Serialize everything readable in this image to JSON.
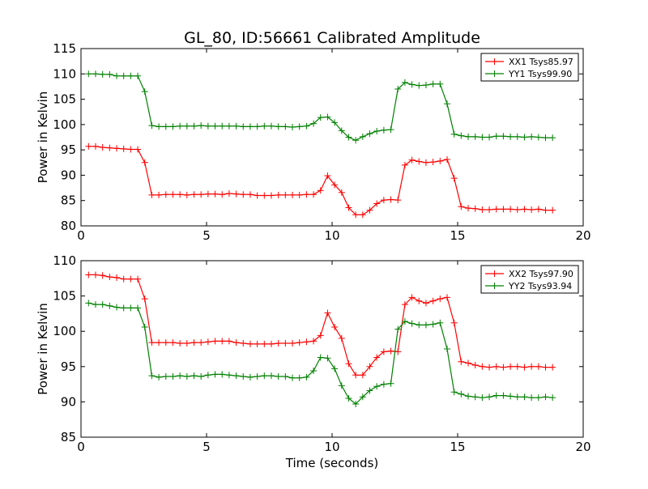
{
  "chart_data": [
    {
      "type": "line",
      "title": "GL_80, ID:56661 Calibrated Amplitude",
      "xlabel": "",
      "ylabel": "Power in Kelvin",
      "xlim": [
        0,
        20
      ],
      "ylim": [
        80,
        115
      ],
      "xticks": [
        "0",
        "5",
        "10",
        "15",
        "20"
      ],
      "yticks": [
        "80",
        "85",
        "90",
        "95",
        "100",
        "105",
        "110",
        "115"
      ],
      "legend_position": "top-right",
      "x": [
        0.3,
        0.58,
        0.86,
        1.14,
        1.42,
        1.7,
        1.98,
        2.26,
        2.54,
        2.82,
        3.1,
        3.38,
        3.66,
        3.94,
        4.22,
        4.5,
        4.78,
        5.06,
        5.34,
        5.62,
        5.9,
        6.18,
        6.46,
        6.74,
        7.02,
        7.3,
        7.58,
        7.86,
        8.14,
        8.42,
        8.7,
        8.98,
        9.26,
        9.54,
        9.82,
        10.1,
        10.38,
        10.66,
        10.94,
        11.22,
        11.5,
        11.78,
        12.06,
        12.34,
        12.62,
        12.9,
        13.18,
        13.46,
        13.74,
        14.02,
        14.3,
        14.58,
        14.86,
        15.14,
        15.42,
        15.7,
        15.98,
        16.26,
        16.54,
        16.82,
        17.1,
        17.38,
        17.66,
        17.94,
        18.22,
        18.5,
        18.78
      ],
      "series": [
        {
          "name": "XX1 Tsys85.97",
          "color": "#ff0000",
          "values": [
            95.7,
            95.7,
            95.5,
            95.4,
            95.3,
            95.2,
            95.1,
            95.1,
            92.5,
            86.1,
            86.1,
            86.2,
            86.2,
            86.2,
            86.1,
            86.2,
            86.2,
            86.3,
            86.3,
            86.2,
            86.4,
            86.3,
            86.2,
            86.2,
            86.0,
            86.0,
            86.0,
            86.1,
            86.1,
            86.1,
            86.1,
            86.2,
            86.2,
            87.0,
            89.9,
            88.1,
            86.6,
            83.6,
            82.2,
            82.2,
            83.1,
            84.4,
            85.1,
            85.2,
            85.1,
            92.0,
            93.0,
            92.7,
            92.5,
            92.6,
            92.8,
            93.1,
            89.4,
            83.8,
            83.5,
            83.4,
            83.2,
            83.2,
            83.3,
            83.3,
            83.3,
            83.2,
            83.3,
            83.2,
            83.3,
            83.1,
            83.1
          ]
        },
        {
          "name": "YY1 Tsys99.90",
          "color": "#008000",
          "values": [
            110.0,
            110.0,
            109.9,
            109.9,
            109.6,
            109.6,
            109.6,
            109.6,
            106.5,
            99.8,
            99.6,
            99.6,
            99.6,
            99.7,
            99.7,
            99.7,
            99.8,
            99.7,
            99.7,
            99.7,
            99.7,
            99.7,
            99.6,
            99.6,
            99.6,
            99.7,
            99.7,
            99.6,
            99.6,
            99.5,
            99.6,
            99.7,
            100.2,
            101.4,
            101.5,
            100.4,
            98.8,
            97.5,
            96.9,
            97.6,
            98.2,
            98.7,
            98.9,
            99.0,
            107.0,
            108.3,
            107.9,
            107.7,
            107.8,
            108.0,
            108.0,
            104.1,
            98.1,
            97.8,
            97.6,
            97.6,
            97.5,
            97.5,
            97.7,
            97.7,
            97.6,
            97.6,
            97.5,
            97.6,
            97.5,
            97.4,
            97.4
          ]
        }
      ]
    },
    {
      "type": "line",
      "title": "",
      "xlabel": "Time (seconds)",
      "ylabel": "Power in Kelvin",
      "xlim": [
        0,
        20
      ],
      "ylim": [
        85,
        110
      ],
      "xticks": [
        "0",
        "5",
        "10",
        "15",
        "20"
      ],
      "yticks": [
        "85",
        "90",
        "95",
        "100",
        "105",
        "110"
      ],
      "legend_position": "top-right",
      "x": [
        0.3,
        0.58,
        0.86,
        1.14,
        1.42,
        1.7,
        1.98,
        2.26,
        2.54,
        2.82,
        3.1,
        3.38,
        3.66,
        3.94,
        4.22,
        4.5,
        4.78,
        5.06,
        5.34,
        5.62,
        5.9,
        6.18,
        6.46,
        6.74,
        7.02,
        7.3,
        7.58,
        7.86,
        8.14,
        8.42,
        8.7,
        8.98,
        9.26,
        9.54,
        9.82,
        10.1,
        10.38,
        10.66,
        10.94,
        11.22,
        11.5,
        11.78,
        12.06,
        12.34,
        12.62,
        12.9,
        13.18,
        13.46,
        13.74,
        14.02,
        14.3,
        14.58,
        14.86,
        15.14,
        15.42,
        15.7,
        15.98,
        16.26,
        16.54,
        16.82,
        17.1,
        17.38,
        17.66,
        17.94,
        18.22,
        18.5,
        18.78
      ],
      "series": [
        {
          "name": "XX2 Tsys97.90",
          "color": "#ff0000",
          "values": [
            108.0,
            108.0,
            107.9,
            107.7,
            107.6,
            107.4,
            107.4,
            107.4,
            104.6,
            98.4,
            98.4,
            98.4,
            98.4,
            98.3,
            98.3,
            98.4,
            98.4,
            98.5,
            98.6,
            98.6,
            98.6,
            98.4,
            98.3,
            98.2,
            98.2,
            98.2,
            98.2,
            98.3,
            98.3,
            98.3,
            98.4,
            98.5,
            98.6,
            99.4,
            102.6,
            100.6,
            99.0,
            95.4,
            93.8,
            93.8,
            95.0,
            96.3,
            97.1,
            97.2,
            97.1,
            103.8,
            104.8,
            104.3,
            104.0,
            104.3,
            104.6,
            104.8,
            101.2,
            95.7,
            95.5,
            95.2,
            95.0,
            94.9,
            95.0,
            94.9,
            95.0,
            95.0,
            94.9,
            95.0,
            95.0,
            94.9,
            94.9
          ]
        },
        {
          "name": "YY2 Tsys93.94",
          "color": "#008000",
          "values": [
            104.0,
            103.8,
            103.8,
            103.6,
            103.4,
            103.3,
            103.3,
            103.3,
            100.6,
            93.7,
            93.5,
            93.6,
            93.6,
            93.7,
            93.6,
            93.7,
            93.6,
            93.8,
            93.9,
            93.9,
            93.8,
            93.7,
            93.6,
            93.5,
            93.6,
            93.7,
            93.7,
            93.6,
            93.6,
            93.4,
            93.4,
            93.5,
            94.4,
            96.3,
            96.2,
            94.7,
            92.3,
            90.5,
            89.7,
            90.7,
            91.6,
            92.2,
            92.5,
            92.6,
            100.3,
            101.4,
            101.1,
            100.9,
            100.9,
            101.0,
            101.2,
            97.5,
            91.4,
            91.1,
            90.8,
            90.7,
            90.6,
            90.7,
            90.9,
            90.9,
            90.8,
            90.7,
            90.7,
            90.6,
            90.6,
            90.7,
            90.6
          ]
        }
      ]
    }
  ]
}
